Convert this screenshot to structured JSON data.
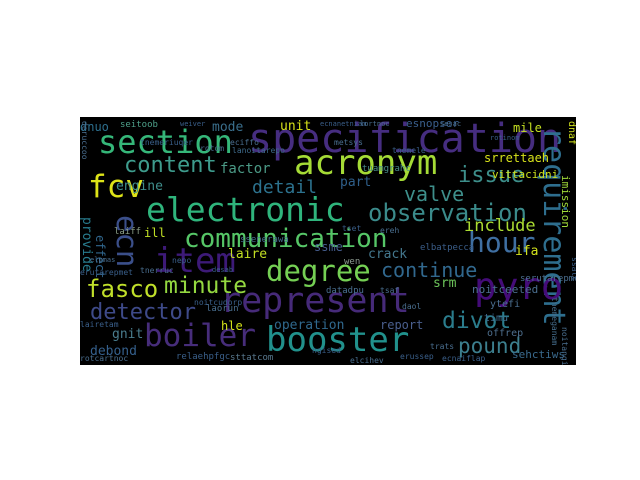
{
  "wordcloud": {
    "background": "#000000",
    "words": [
      {
        "text": "specification",
        "color": "#462d80"
      },
      {
        "text": "section",
        "color": "#35b779"
      },
      {
        "text": "acronym",
        "color": "#a5db36"
      },
      {
        "text": "content",
        "color": "#3e9c8d"
      },
      {
        "text": "fcv",
        "color": "#dde318"
      },
      {
        "text": "electronic",
        "color": "#2fb47c"
      },
      {
        "text": "observation",
        "color": "#3b8b8b"
      },
      {
        "text": "requirement",
        "color": "#2e6e8e"
      },
      {
        "text": "hour",
        "color": "#3f6fa2"
      },
      {
        "text": "communication",
        "color": "#56c667"
      },
      {
        "text": "item",
        "color": "#3d1a78"
      },
      {
        "text": "ecn",
        "color": "#3b4f8a"
      },
      {
        "text": "degree",
        "color": "#75d054"
      },
      {
        "text": "continue",
        "color": "#31688e"
      },
      {
        "text": "pyro",
        "color": "#440c78"
      },
      {
        "text": "represent",
        "color": "#462a79"
      },
      {
        "text": "fasco",
        "color": "#c0df2a"
      },
      {
        "text": "minute",
        "color": "#94d840"
      },
      {
        "text": "detector",
        "color": "#3e4a89"
      },
      {
        "text": "divot",
        "color": "#2b7d8d"
      },
      {
        "text": "boiler",
        "color": "#472d7b"
      },
      {
        "text": "booster",
        "color": "#21918c"
      },
      {
        "text": "pound",
        "color": "#3c7f8e"
      },
      {
        "text": "issue",
        "color": "#3d8f8b"
      },
      {
        "text": "valve",
        "color": "#3e8f8b"
      },
      {
        "text": "include",
        "color": "#aadc32"
      },
      {
        "text": "detail",
        "color": "#2c728e"
      },
      {
        "text": "engine",
        "color": "#3f8e8c"
      },
      {
        "text": "factor",
        "color": "#4b9a86"
      },
      {
        "text": "mode",
        "color": "#3a6e8b"
      },
      {
        "text": "unit",
        "color": "#d8e219"
      },
      {
        "text": "part",
        "color": "#2f5f8a"
      },
      {
        "text": "provide",
        "color": "#287c8e"
      },
      {
        "text": "effect",
        "color": "#31678e"
      },
      {
        "text": "gnit",
        "color": "#4a7d8e"
      },
      {
        "text": "debond",
        "color": "#35608d"
      },
      {
        "text": "operation",
        "color": "#30698e"
      },
      {
        "text": "report",
        "color": "#4a5f8e"
      },
      {
        "text": "srm",
        "color": "#6cc35a"
      },
      {
        "text": "crack",
        "color": "#44788e"
      },
      {
        "text": "laire",
        "color": "#c2df23"
      },
      {
        "text": "ifa",
        "color": "#d2e21b"
      },
      {
        "text": "mile",
        "color": "#c5e021"
      },
      {
        "text": "ssme",
        "color": "#455c8c"
      },
      {
        "text": "hle",
        "color": "#d5e21a"
      },
      {
        "text": "ill",
        "color": "#c0df25"
      },
      {
        "text": "esnopser",
        "color": "#3a5f8e"
      },
      {
        "text": "dnuo",
        "color": "#2d6f8e"
      },
      {
        "text": "seitoob",
        "color": "#4ea08a"
      },
      {
        "text": "srrettaeh",
        "color": "#d7e21a"
      },
      {
        "text": "vittacidni",
        "color": "#cde11d"
      },
      {
        "text": "noitceeted",
        "color": "#4b6f90"
      },
      {
        "text": "ytefi",
        "color": "#4b6f90"
      },
      {
        "text": "timu",
        "color": "#3f6f90"
      },
      {
        "text": "offrep",
        "color": "#4e6f8e"
      },
      {
        "text": "sehctiws",
        "color": "#3a6a8e"
      },
      {
        "text": "serutarepmet",
        "color": "#4b6f90"
      },
      {
        "text": "imission",
        "color": "#a0da39"
      },
      {
        "text": "dnaf",
        "color": "#d0e11c"
      },
      {
        "text": "wen",
        "color": "#8d9a90"
      },
      {
        "text": "elbatpecca",
        "color": "#3b5e8a"
      },
      {
        "text": "laiff",
        "color": "#8c9f88"
      },
      {
        "text": "tuamgrahc",
        "color": "#4a8e8a"
      },
      {
        "text": "datadpu",
        "color": "#4a6f90"
      },
      {
        "text": "sttatcom",
        "color": "#5a7a90"
      },
      {
        "text": "relaehpfgc",
        "color": "#3a5f8a"
      },
      {
        "text": "deruccoo",
        "color": "#4a6f90"
      },
      {
        "text": "ssenerawa",
        "color": "#466f8f"
      },
      {
        "text": "laorun",
        "color": "#4a6f90"
      },
      {
        "text": "tnemeganam",
        "color": "#466f8f"
      },
      {
        "text": "ssalc",
        "color": "#3a5f8a"
      },
      {
        "text": "noitangised",
        "color": "#4a6f90"
      },
      {
        "text": "nepo",
        "color": "#3a5f8a"
      },
      {
        "text": "daol",
        "color": "#4a6f90"
      },
      {
        "text": "tset",
        "color": "#3a5f8a"
      },
      {
        "text": "lanoitarepo",
        "color": "#3e6a8a"
      },
      {
        "text": "metsys",
        "color": "#4a6f90"
      },
      {
        "text": "tnemele",
        "color": "#3a5f8a"
      },
      {
        "text": "rotom",
        "color": "#4a6f90"
      },
      {
        "text": "tnemeriuqer",
        "color": "#3a5f8a"
      },
      {
        "text": "eciffo",
        "color": "#4a6f90"
      },
      {
        "text": "ngised",
        "color": "#3a5f8a"
      },
      {
        "text": "elcihev",
        "color": "#4a6f90"
      },
      {
        "text": "erussep",
        "color": "#3a5f8a"
      },
      {
        "text": "trats",
        "color": "#4a6f90"
      },
      {
        "text": "ecnaiflap",
        "color": "#3a5f8a"
      },
      {
        "text": "rotcartnoc",
        "color": "#4a6f90"
      },
      {
        "text": "lairetam",
        "color": "#3a5f8a"
      },
      {
        "text": "tnerruc",
        "color": "#4a6f90"
      },
      {
        "text": "noitcudorp",
        "color": "#3a5f8a"
      },
      {
        "text": "ereh",
        "color": "#4a6f90"
      },
      {
        "text": "erutarepmet",
        "color": "#3a5f8a"
      },
      {
        "text": "tsaf",
        "color": "#4a6f90"
      },
      {
        "text": "ecnanetniam",
        "color": "#3a5f8a"
      },
      {
        "text": "lortnoc",
        "color": "#4a6f90"
      },
      {
        "text": "weiver",
        "color": "#3a5f8a"
      },
      {
        "text": "sesac",
        "color": "#4a6f90"
      },
      {
        "text": "rotinom",
        "color": "#3a5f8a"
      },
      {
        "text": "elpmas",
        "color": "#4a6f90"
      },
      {
        "text": "desab",
        "color": "#3a5f8a"
      }
    ]
  }
}
